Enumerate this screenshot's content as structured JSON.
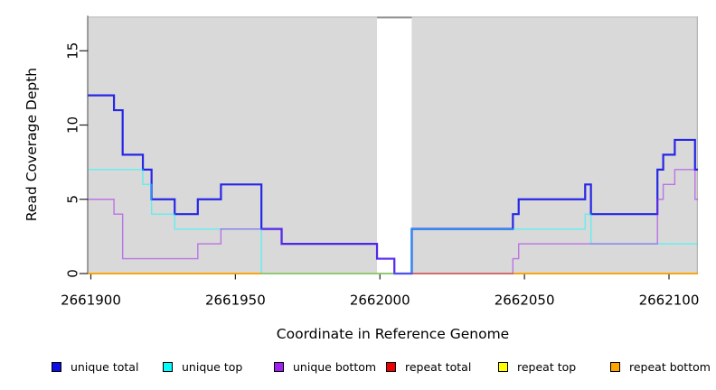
{
  "chart_data": {
    "type": "line",
    "step": true,
    "title": "",
    "xlabel": "Coordinate in Reference Genome",
    "ylabel": "Read Coverage Depth",
    "xlim": [
      2661899,
      2662110
    ],
    "ylim": [
      0,
      17.3
    ],
    "x_ticks": [
      2661900,
      2661950,
      2662000,
      2662050,
      2662100
    ],
    "y_ticks": [
      0,
      5,
      10,
      15
    ],
    "grid": false,
    "plot_bg": "#d9d9d9",
    "gap_region": {
      "start": 2661999,
      "end": 2662011,
      "color": "#ffffff",
      "cap_color": "#8f8f8f"
    },
    "legend_position": "bottom",
    "series": [
      {
        "name": "repeat total",
        "color": "#ee0000",
        "opacity": 1,
        "width": 1.2,
        "points": [
          [
            2661899,
            0
          ]
        ]
      },
      {
        "name": "repeat top",
        "color": "#ffff00",
        "opacity": 1,
        "width": 1.2,
        "points": [
          [
            2661899,
            0
          ]
        ]
      },
      {
        "name": "repeat bottom",
        "color": "#ffa500",
        "opacity": 1,
        "width": 1.8,
        "points": [
          [
            2661899,
            0
          ]
        ]
      },
      {
        "name": "unique total",
        "color": "#0d0de8",
        "opacity": 0.88,
        "width": 2.2,
        "points": [
          [
            2661899,
            12
          ],
          [
            2661908,
            11
          ],
          [
            2661911,
            8
          ],
          [
            2661918,
            7
          ],
          [
            2661921,
            5
          ],
          [
            2661929,
            4
          ],
          [
            2661937,
            5
          ],
          [
            2661945,
            6
          ],
          [
            2661959,
            3
          ],
          [
            2661966,
            2
          ],
          [
            2661999,
            1
          ],
          [
            2662005,
            0
          ],
          [
            2662011,
            3
          ],
          [
            2662046,
            4
          ],
          [
            2662048,
            5
          ],
          [
            2662071,
            6
          ],
          [
            2662073,
            4
          ],
          [
            2662096,
            7
          ],
          [
            2662098,
            8
          ],
          [
            2662102,
            9
          ],
          [
            2662109,
            7
          ]
        ]
      },
      {
        "name": "unique top",
        "color": "#00ffff",
        "opacity": 0.55,
        "width": 1.4,
        "points": [
          [
            2661899,
            7
          ],
          [
            2661918,
            6
          ],
          [
            2661921,
            4
          ],
          [
            2661929,
            3
          ],
          [
            2661959,
            0
          ],
          [
            2662011,
            3
          ],
          [
            2662071,
            4
          ],
          [
            2662073,
            2
          ]
        ]
      },
      {
        "name": "unique bottom",
        "color": "#a020f0",
        "opacity": 0.55,
        "width": 1.4,
        "points": [
          [
            2661899,
            5
          ],
          [
            2661908,
            4
          ],
          [
            2661911,
            1
          ],
          [
            2661937,
            2
          ],
          [
            2661945,
            3
          ],
          [
            2661966,
            2
          ],
          [
            2661999,
            1
          ],
          [
            2662005,
            0
          ],
          [
            2662046,
            1
          ],
          [
            2662048,
            2
          ],
          [
            2662096,
            5
          ],
          [
            2662098,
            6
          ],
          [
            2662102,
            7
          ],
          [
            2662109,
            5
          ]
        ]
      }
    ],
    "legend": [
      {
        "label": "unique total",
        "color": "#0d0de8"
      },
      {
        "label": "unique top",
        "color": "#00ffff"
      },
      {
        "label": "unique bottom",
        "color": "#a020f0"
      },
      {
        "label": "repeat total",
        "color": "#ee0000"
      },
      {
        "label": "repeat top",
        "color": "#ffff00"
      },
      {
        "label": "repeat bottom",
        "color": "#ffa500"
      }
    ]
  }
}
